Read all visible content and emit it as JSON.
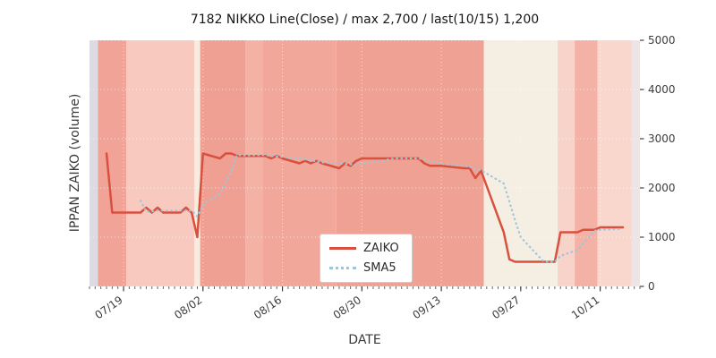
{
  "chart_data": {
    "type": "line",
    "title": "7182 NIKKO Line(Close) / max 2,700 / last(10/15) 1,200",
    "xlabel": "DATE",
    "ylabel": "IPPAN ZAIKO (volume)",
    "ylim": [
      0,
      5000
    ],
    "yticks": [
      0,
      1000,
      2000,
      3000,
      4000,
      5000
    ],
    "xtick_labels": [
      "07/19",
      "08/02",
      "08/16",
      "08/30",
      "09/13",
      "09/27",
      "10/11"
    ],
    "xlim": [
      "07/13",
      "10/18"
    ],
    "grid": "white dotted",
    "legend_position": "lower center",
    "dates": [
      "07/16",
      "07/17",
      "07/18",
      "07/19",
      "07/22",
      "07/23",
      "07/24",
      "07/25",
      "07/26",
      "07/29",
      "07/30",
      "07/31",
      "08/01",
      "08/02",
      "08/05",
      "08/06",
      "08/07",
      "08/08",
      "08/09",
      "08/13",
      "08/14",
      "08/15",
      "08/16",
      "08/19",
      "08/20",
      "08/21",
      "08/22",
      "08/23",
      "08/26",
      "08/27",
      "08/28",
      "08/29",
      "08/30",
      "09/02",
      "09/03",
      "09/04",
      "09/05",
      "09/06",
      "09/09",
      "09/10",
      "09/11",
      "09/12",
      "09/13",
      "09/17",
      "09/18",
      "09/19",
      "09/20",
      "09/24",
      "09/25",
      "09/26",
      "09/27",
      "09/30",
      "10/01",
      "10/02",
      "10/03",
      "10/04",
      "10/07",
      "10/08",
      "10/09",
      "10/10",
      "10/11",
      "10/15"
    ],
    "series": [
      {
        "name": "ZAIKO",
        "color": "#d9513e",
        "style": "solid",
        "values": [
          2700,
          1500,
          1500,
          1500,
          1500,
          1600,
          1500,
          1600,
          1500,
          1500,
          1600,
          1500,
          1000,
          2700,
          2600,
          2700,
          2700,
          2650,
          2650,
          2650,
          2600,
          2650,
          2600,
          2500,
          2550,
          2500,
          2550,
          2500,
          2400,
          2500,
          2450,
          2550,
          2600,
          2600,
          2600,
          2600,
          2600,
          2600,
          2600,
          2500,
          2450,
          2450,
          2450,
          2400,
          2400,
          2200,
          2350,
          1100,
          550,
          500,
          500,
          500,
          500,
          500,
          500,
          1100,
          1100,
          1150,
          1150,
          1150,
          1200,
          1200
        ]
      },
      {
        "name": "SMA5",
        "color": "#9fc5d8",
        "style": "dotted",
        "derived": "5-point moving average of ZAIKO"
      }
    ],
    "background_bands": [
      {
        "from": "07/13",
        "to": "07/14",
        "color": "#dcdbe3"
      },
      {
        "from": "07/15",
        "to": "07/19",
        "color": "#f0a396"
      },
      {
        "from": "07/20",
        "to": "07/31",
        "color": "#f8c9bf"
      },
      {
        "from": "08/01",
        "to": "08/01",
        "color": "#f6ecdf"
      },
      {
        "from": "08/02",
        "to": "08/09",
        "color": "#efa093"
      },
      {
        "from": "08/10",
        "to": "08/12",
        "color": "#f4b2a5"
      },
      {
        "from": "08/13",
        "to": "08/25",
        "color": "#f1a89b"
      },
      {
        "from": "08/26",
        "to": "09/20",
        "color": "#efa194"
      },
      {
        "from": "09/21",
        "to": "10/03",
        "color": "#f5eee2"
      },
      {
        "from": "10/04",
        "to": "10/06",
        "color": "#f8d3c9"
      },
      {
        "from": "10/07",
        "to": "10/10",
        "color": "#f3b2a5"
      },
      {
        "from": "10/11",
        "to": "10/16",
        "color": "#f9d7cd"
      },
      {
        "from": "10/17",
        "to": "10/18",
        "color": "#ece4e6"
      }
    ]
  }
}
